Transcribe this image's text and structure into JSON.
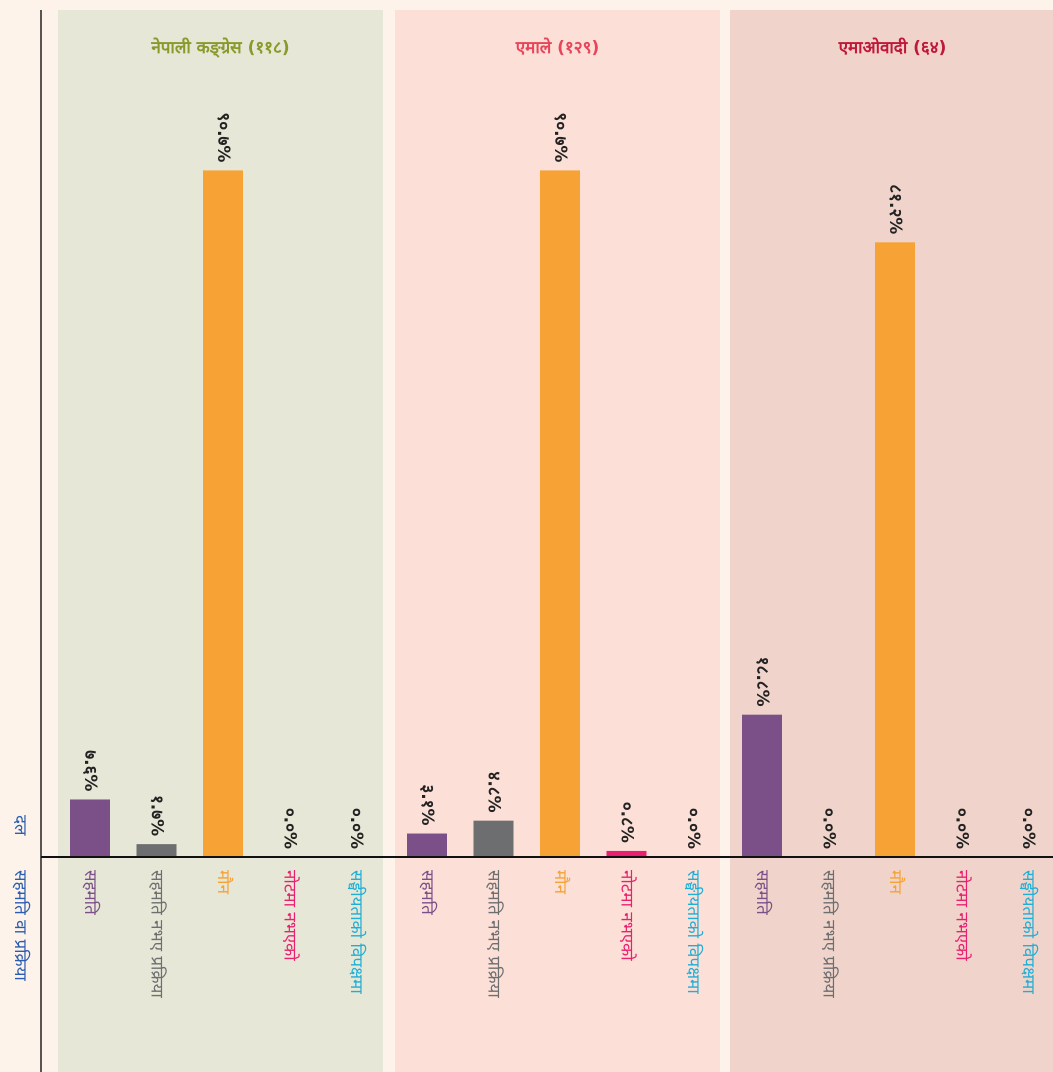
{
  "labels": {
    "panel_axis": "दल",
    "category_axis": "सहमति वा प्रक्रिया"
  },
  "chart_data": [
    {
      "type": "bar",
      "title": "नेपाली कङ्ग्रेस (११८)",
      "title_color": "#8a9a2a",
      "background": "#e7e7d7",
      "categories": [
        "सहमति",
        "सहमति नभए प्रक्रिया",
        "मौन",
        "नोटमा नभएको",
        "सङ्घीयताको विपक्षमा"
      ],
      "colors": [
        "#7b5089",
        "#6d6e70",
        "#f6a234",
        "#e8206f",
        "#1eaed6"
      ],
      "values": [
        7.6,
        1.7,
        90.7,
        0.0,
        0.0
      ],
      "value_labels": [
        "७.६%",
        "१.७%",
        "९०.७%",
        "०.०%",
        "०.०%"
      ],
      "ylim": [
        0,
        100
      ]
    },
    {
      "type": "bar",
      "title": "एमाले (१२९)",
      "title_color": "#e8455a",
      "background": "#fcdfd7",
      "categories": [
        "सहमति",
        "सहमति नभए प्रक्रिया",
        "मौन",
        "नोटमा नभएको",
        "सङ्घीयताको विपक्षमा"
      ],
      "colors": [
        "#7b5089",
        "#6d6e70",
        "#f6a234",
        "#e8206f",
        "#1eaed6"
      ],
      "values": [
        3.1,
        4.8,
        90.7,
        0.8,
        0.0
      ],
      "value_labels": [
        "३.१%",
        "४.८%",
        "९०.७%",
        "०.८%",
        "०.०%"
      ],
      "ylim": [
        0,
        100
      ]
    },
    {
      "type": "bar",
      "title": "एमाओवादी (६४)",
      "title_color": "#c0183a",
      "background": "#f0d4cb",
      "categories": [
        "सहमति",
        "सहमति नभए प्रक्रिया",
        "मौन",
        "नोटमा नभएको",
        "सङ्घीयताको विपक्षमा"
      ],
      "colors": [
        "#7b5089",
        "#6d6e70",
        "#f6a234",
        "#e8206f",
        "#1eaed6"
      ],
      "values": [
        18.8,
        0.0,
        81.2,
        0.0,
        0.0
      ],
      "value_labels": [
        "१८.८%",
        "०.०%",
        "८१.२%",
        "०.०%",
        "०.०%"
      ],
      "ylim": [
        0,
        100
      ]
    }
  ]
}
